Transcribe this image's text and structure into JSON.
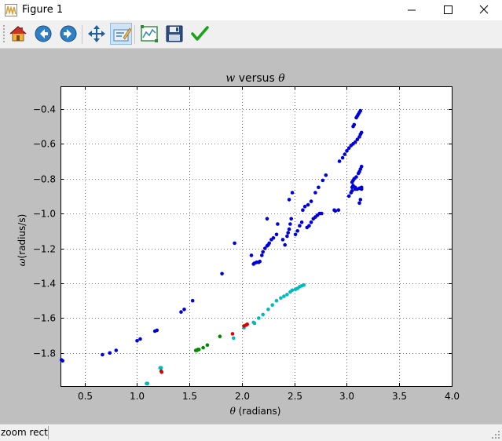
{
  "window": {
    "title": "Figure 1",
    "minimize_label": "—",
    "maximize_label": "☐",
    "close_label": "✕"
  },
  "toolbar": {
    "tools": [
      {
        "name": "home",
        "icon": "home-icon",
        "tooltip": "Reset original view"
      },
      {
        "name": "back",
        "icon": "back-arrow-icon",
        "tooltip": "Back to previous view"
      },
      {
        "name": "forward",
        "icon": "forward-arrow-icon",
        "tooltip": "Forward to next view"
      },
      {
        "name": "pan",
        "icon": "move-arrows-icon",
        "tooltip": "Pan axes"
      },
      {
        "name": "zoom",
        "icon": "zoom-rect-icon",
        "tooltip": "Zoom to rectangle",
        "active": true
      },
      {
        "name": "subplots",
        "icon": "subplots-icon",
        "tooltip": "Configure subplots"
      },
      {
        "name": "save",
        "icon": "floppy-disk-icon",
        "tooltip": "Save the figure"
      },
      {
        "name": "edit",
        "icon": "checkmark-icon",
        "tooltip": "Edit axis"
      }
    ]
  },
  "status": {
    "text": "zoom rect"
  },
  "chart_data": {
    "type": "scatter",
    "title_prefix": "w",
    "title_middle": " versus ",
    "title_suffix": "θ",
    "xlabel_symbol": "θ",
    "xlabel_text": " (radians)",
    "ylabel_symbol": "ω",
    "ylabel_text": "(radius/s)",
    "xlim": [
      0.27,
      4.0
    ],
    "ylim": [
      -1.99,
      -0.27
    ],
    "xticks": [
      0.5,
      1.0,
      1.5,
      2.0,
      2.5,
      3.0,
      3.5,
      4.0
    ],
    "xtick_labels": [
      "0.5",
      "1.0",
      "1.5",
      "2.0",
      "2.5",
      "3.0",
      "3.5",
      "4.0"
    ],
    "yticks": [
      -0.4,
      -0.6,
      -0.8,
      -1.0,
      -1.2,
      -1.4,
      -1.6,
      -1.8
    ],
    "ytick_labels": [
      "−0.4",
      "−0.6",
      "−0.8",
      "−1.0",
      "−1.2",
      "−1.4",
      "−1.6",
      "−1.8"
    ],
    "grid": true,
    "background": "#ffffff",
    "series": [
      {
        "color": "#0000dd",
        "points": [
          [
            0.28,
            -1.84
          ],
          [
            0.29,
            -1.845
          ],
          [
            0.67,
            -1.81
          ],
          [
            0.74,
            -1.8
          ],
          [
            0.8,
            -1.785
          ],
          [
            1.0,
            -1.73
          ],
          [
            1.03,
            -1.72
          ],
          [
            1.17,
            -1.675
          ],
          [
            1.19,
            -1.67
          ],
          [
            1.42,
            -1.565
          ],
          [
            1.45,
            -1.55
          ],
          [
            1.53,
            -1.5
          ],
          [
            1.81,
            -1.345
          ],
          [
            1.93,
            -1.17
          ],
          [
            2.09,
            -1.24
          ],
          [
            2.11,
            -1.29
          ],
          [
            2.12,
            -1.285
          ],
          [
            2.14,
            -1.28
          ],
          [
            2.16,
            -1.28
          ],
          [
            2.17,
            -1.275
          ],
          [
            2.19,
            -1.24
          ],
          [
            2.2,
            -1.22
          ],
          [
            2.22,
            -1.2
          ],
          [
            2.24,
            -1.185
          ],
          [
            2.26,
            -1.17
          ],
          [
            2.28,
            -1.15
          ],
          [
            2.3,
            -1.14
          ],
          [
            2.33,
            -1.12
          ],
          [
            2.25,
            -1.18
          ],
          [
            2.24,
            -1.03
          ],
          [
            2.34,
            -1.06
          ],
          [
            2.39,
            -1.15
          ],
          [
            2.41,
            -1.18
          ],
          [
            2.43,
            -1.13
          ],
          [
            2.44,
            -1.11
          ],
          [
            2.45,
            -1.09
          ],
          [
            2.46,
            -1.06
          ],
          [
            2.47,
            -1.03
          ],
          [
            2.45,
            -0.92
          ],
          [
            2.48,
            -0.88
          ],
          [
            2.51,
            -1.12
          ],
          [
            2.53,
            -1.1
          ],
          [
            2.55,
            -1.07
          ],
          [
            2.57,
            -1.05
          ],
          [
            2.58,
            -0.98
          ],
          [
            2.6,
            -0.96
          ],
          [
            2.63,
            -0.95
          ],
          [
            2.66,
            -0.93
          ],
          [
            2.7,
            -0.88
          ],
          [
            2.73,
            -0.85
          ],
          [
            2.77,
            -0.81
          ],
          [
            2.8,
            -0.78
          ],
          [
            2.62,
            -1.08
          ],
          [
            2.64,
            -1.07
          ],
          [
            2.66,
            -1.05
          ],
          [
            2.68,
            -1.03
          ],
          [
            2.7,
            -1.02
          ],
          [
            2.72,
            -1.01
          ],
          [
            2.74,
            -1.0
          ],
          [
            2.76,
            -1.0
          ],
          [
            2.88,
            -0.98
          ],
          [
            2.89,
            -0.985
          ],
          [
            2.92,
            -0.98
          ],
          [
            2.93,
            -0.7
          ],
          [
            2.96,
            -0.68
          ],
          [
            2.98,
            -0.66
          ],
          [
            3.0,
            -0.64
          ],
          [
            3.02,
            -0.625
          ],
          [
            3.04,
            -0.61
          ],
          [
            3.06,
            -0.6
          ],
          [
            3.08,
            -0.59
          ],
          [
            3.1,
            -0.575
          ],
          [
            3.12,
            -0.56
          ],
          [
            3.13,
            -0.545
          ],
          [
            3.14,
            -0.535
          ],
          [
            3.05,
            -0.85
          ],
          [
            3.06,
            -0.84
          ],
          [
            3.08,
            -0.86
          ],
          [
            3.1,
            -0.86
          ],
          [
            3.12,
            -0.855
          ],
          [
            3.14,
            -0.85
          ],
          [
            3.05,
            -0.82
          ],
          [
            3.06,
            -0.81
          ],
          [
            3.07,
            -0.8
          ],
          [
            3.09,
            -0.79
          ],
          [
            3.11,
            -0.77
          ],
          [
            3.12,
            -0.76
          ],
          [
            3.13,
            -0.745
          ],
          [
            3.14,
            -0.73
          ],
          [
            3.02,
            -0.9
          ],
          [
            3.04,
            -0.88
          ],
          [
            3.05,
            -0.87
          ],
          [
            3.08,
            -0.85
          ],
          [
            3.14,
            -0.86
          ],
          [
            3.12,
            -0.94
          ],
          [
            3.13,
            -0.92
          ],
          [
            3.09,
            -0.45
          ],
          [
            3.1,
            -0.44
          ],
          [
            3.11,
            -0.43
          ],
          [
            3.12,
            -0.42
          ],
          [
            3.13,
            -0.41
          ],
          [
            3.06,
            -0.5
          ],
          [
            3.07,
            -0.49
          ]
        ]
      },
      {
        "color": "#00bbbb",
        "points": [
          [
            1.09,
            -1.975
          ],
          [
            1.1,
            -1.975
          ],
          [
            1.22,
            -1.885
          ],
          [
            1.23,
            -1.885
          ],
          [
            1.92,
            -1.715
          ],
          [
            2.02,
            -1.655
          ],
          [
            2.11,
            -1.625
          ],
          [
            2.12,
            -1.63
          ],
          [
            2.16,
            -1.6
          ],
          [
            2.2,
            -1.58
          ],
          [
            2.25,
            -1.55
          ],
          [
            2.29,
            -1.525
          ],
          [
            2.33,
            -1.5
          ],
          [
            2.37,
            -1.485
          ],
          [
            2.4,
            -1.475
          ],
          [
            2.43,
            -1.465
          ],
          [
            2.46,
            -1.45
          ],
          [
            2.48,
            -1.44
          ],
          [
            2.51,
            -1.435
          ],
          [
            2.53,
            -1.43
          ],
          [
            2.55,
            -1.42
          ],
          [
            2.57,
            -1.415
          ],
          [
            2.59,
            -1.41
          ]
        ]
      },
      {
        "color": "#008800",
        "points": [
          [
            1.56,
            -1.785
          ],
          [
            1.57,
            -1.785
          ],
          [
            1.58,
            -1.78
          ],
          [
            1.59,
            -1.78
          ],
          [
            1.63,
            -1.77
          ],
          [
            1.67,
            -1.755
          ],
          [
            1.79,
            -1.705
          ]
        ]
      },
      {
        "color": "#dd0000",
        "points": [
          [
            1.23,
            -1.905
          ],
          [
            1.235,
            -1.91
          ],
          [
            1.91,
            -1.69
          ],
          [
            2.02,
            -1.645
          ],
          [
            2.04,
            -1.64
          ],
          [
            2.05,
            -1.635
          ]
        ]
      }
    ]
  }
}
